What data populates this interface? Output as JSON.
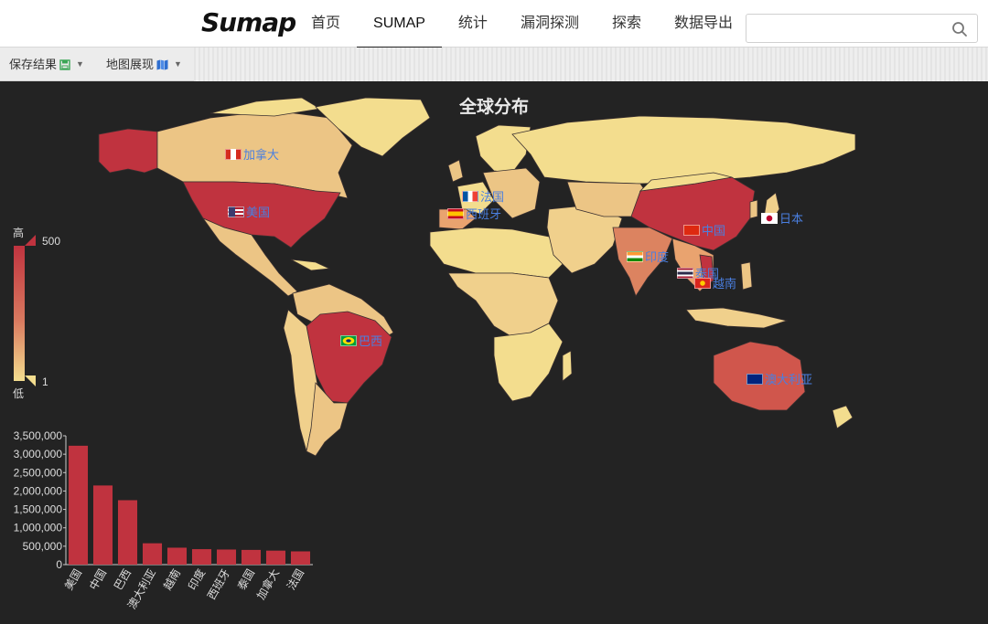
{
  "header": {
    "logo": "Sumap",
    "nav": [
      {
        "label": "首页",
        "active": false
      },
      {
        "label": "SUMAP",
        "active": true
      },
      {
        "label": "统计",
        "active": false
      },
      {
        "label": "漏洞探测",
        "active": false
      },
      {
        "label": "探索",
        "active": false
      },
      {
        "label": "数据导出",
        "active": false
      }
    ],
    "search": {
      "value": "",
      "placeholder": "",
      "icon": "search-icon"
    }
  },
  "toolbar": {
    "save_label": "保存结果",
    "save_icon": "save-icon",
    "view_label": "地图展现",
    "view_icon": "map-icon"
  },
  "map": {
    "title": "全球分布",
    "legend": {
      "high_label": "高",
      "low_label": "低",
      "max": "500",
      "min": "1"
    },
    "labels": [
      {
        "country": "加拿大",
        "flag": "canada"
      },
      {
        "country": "美国",
        "flag": "usa"
      },
      {
        "country": "法国",
        "flag": "france"
      },
      {
        "country": "西班牙",
        "flag": "spain"
      },
      {
        "country": "中国",
        "flag": "china"
      },
      {
        "country": "日本",
        "flag": "japan"
      },
      {
        "country": "印度",
        "flag": "india"
      },
      {
        "country": "泰国",
        "flag": "thailand"
      },
      {
        "country": "越南",
        "flag": "vietnam"
      },
      {
        "country": "巴西",
        "flag": "brazil"
      },
      {
        "country": "澳大利亚",
        "flag": "australia"
      }
    ],
    "colors": {
      "high": "#c0333f",
      "mid": "#dc8360",
      "low": "#f3dd8e",
      "background": "#232323"
    }
  },
  "chart_data": {
    "type": "bar",
    "categories": [
      "美国",
      "中国",
      "巴西",
      "澳大利亚",
      "越南",
      "印度",
      "西班牙",
      "泰国",
      "加拿大",
      "法国"
    ],
    "values": [
      3230000,
      2150000,
      1750000,
      580000,
      460000,
      420000,
      410000,
      400000,
      380000,
      360000
    ],
    "y_ticks": [
      "0",
      "500,000",
      "1,000,000",
      "1,500,000",
      "2,000,000",
      "2,500,000",
      "3,000,000",
      "3,500,000"
    ],
    "ylim": [
      0,
      3500000
    ],
    "color": "#c0333f",
    "grid": false
  }
}
